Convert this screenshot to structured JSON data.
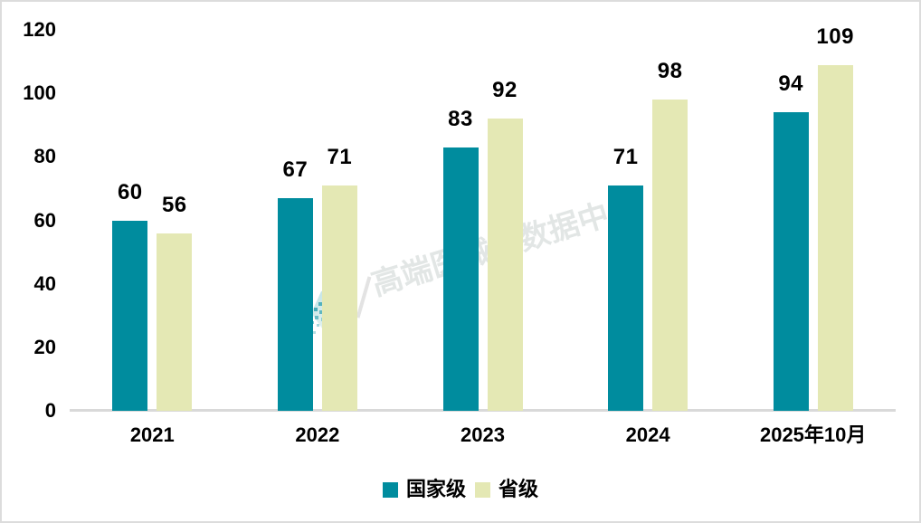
{
  "chart_data": {
    "type": "bar",
    "title": "",
    "xlabel": "",
    "ylabel": "",
    "categories": [
      "2021",
      "2022",
      "2023",
      "2024",
      "2025年10月"
    ],
    "series": [
      {
        "name": "国家级",
        "color": "#008C9E",
        "values": [
          60,
          67,
          83,
          71,
          94
        ]
      },
      {
        "name": "省级",
        "color": "#E4E8B4",
        "values": [
          56,
          71,
          92,
          98,
          109
        ]
      }
    ],
    "ylim": [
      0,
      120
    ],
    "yticks": [
      0,
      20,
      40,
      60,
      80,
      100,
      120
    ],
    "grid": false,
    "legend_position": "bottom"
  },
  "watermark": {
    "text": "高端医械院数据中心",
    "logo": "hexagon-dots-logo"
  },
  "colors": {
    "axis_line": "#D9D9D9",
    "border": "#DCDCDC",
    "label_text": "#000000",
    "watermark_text": "#E2E6E5"
  }
}
